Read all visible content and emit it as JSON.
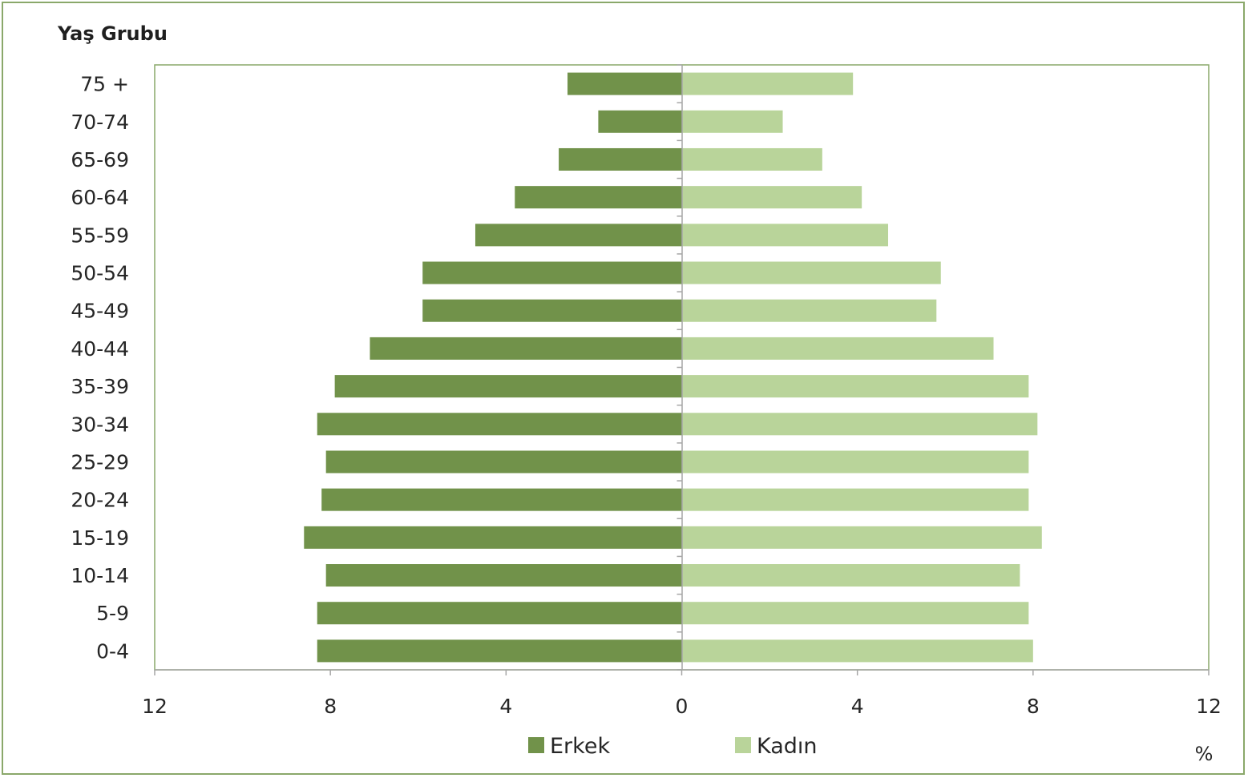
{
  "chart_data": {
    "type": "bar",
    "orientation": "horizontal",
    "ylabel": "Yaş Grubu",
    "xlabel": "%",
    "categories": [
      "75 +",
      "70-74",
      "65-69",
      "60-64",
      "55-59",
      "50-54",
      "45-49",
      "40-44",
      "35-39",
      "30-34",
      "25-29",
      "20-24",
      "15-19",
      "10-14",
      "5-9",
      "0-4"
    ],
    "x_ticks": [
      12,
      8,
      4,
      0,
      4,
      8,
      12
    ],
    "xlim": [
      -12,
      12
    ],
    "grid": false,
    "legend_position": "bottom",
    "series": [
      {
        "name": "Erkek",
        "direction": "left",
        "color": "#71924a",
        "values": [
          2.6,
          1.9,
          2.8,
          3.8,
          4.7,
          5.9,
          5.9,
          7.1,
          7.9,
          8.3,
          8.1,
          8.2,
          8.6,
          8.1,
          8.3,
          8.3
        ]
      },
      {
        "name": "Kadın",
        "direction": "right",
        "color": "#b9d49a",
        "values": [
          3.9,
          2.3,
          3.2,
          4.1,
          4.7,
          5.9,
          5.8,
          7.1,
          7.9,
          8.1,
          7.9,
          7.9,
          8.2,
          7.7,
          7.9,
          8.0
        ]
      }
    ]
  }
}
